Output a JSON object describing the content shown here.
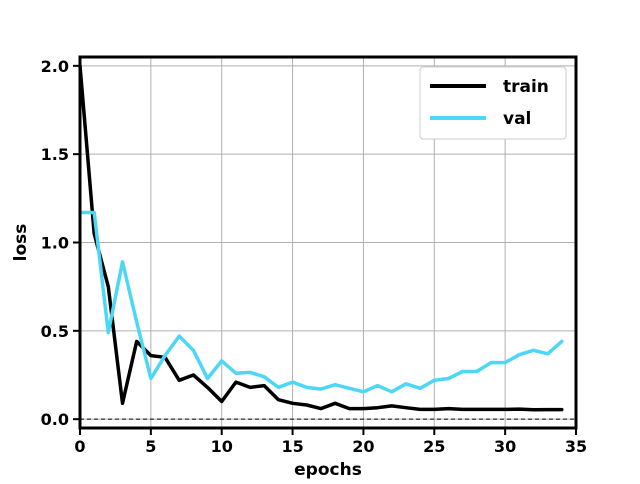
{
  "chart_data": {
    "type": "line",
    "title": "",
    "xlabel": "epochs",
    "ylabel": "loss",
    "xlim": [
      0,
      35
    ],
    "ylim": [
      -0.05,
      2.05
    ],
    "xticks": [
      0,
      5,
      10,
      15,
      20,
      25,
      30,
      35
    ],
    "yticks": [
      0.0,
      0.5,
      1.0,
      1.5,
      2.0
    ],
    "xtick_labels": [
      "0",
      "5",
      "10",
      "15",
      "20",
      "25",
      "30",
      "35"
    ],
    "ytick_labels": [
      "0.0",
      "0.5",
      "1.0",
      "1.5",
      "2.0"
    ],
    "grid": true,
    "legend_position": "top-right",
    "reference_line": {
      "y": 0.0,
      "style": "dashed",
      "color": "#000000"
    },
    "x": [
      0,
      1,
      2,
      3,
      4,
      5,
      6,
      7,
      8,
      9,
      10,
      11,
      12,
      13,
      14,
      15,
      16,
      17,
      18,
      19,
      20,
      21,
      22,
      23,
      24,
      25,
      26,
      27,
      28,
      29,
      30,
      31,
      32,
      33,
      34
    ],
    "series": [
      {
        "name": "train",
        "color": "#000000",
        "values": [
          2.0,
          1.05,
          0.75,
          0.09,
          0.44,
          0.36,
          0.35,
          0.22,
          0.25,
          0.18,
          0.1,
          0.21,
          0.18,
          0.19,
          0.11,
          0.09,
          0.08,
          0.06,
          0.09,
          0.06,
          0.06,
          0.065,
          0.075,
          0.065,
          0.055,
          0.055,
          0.06,
          0.055,
          0.055,
          0.055,
          0.055,
          0.057,
          0.053,
          0.054,
          0.054
        ]
      },
      {
        "name": "val",
        "color": "#4dd7f7",
        "values": [
          1.17,
          1.17,
          0.49,
          0.89,
          0.55,
          0.23,
          0.36,
          0.47,
          0.39,
          0.23,
          0.33,
          0.26,
          0.265,
          0.24,
          0.18,
          0.21,
          0.18,
          0.17,
          0.195,
          0.175,
          0.155,
          0.19,
          0.155,
          0.2,
          0.175,
          0.22,
          0.23,
          0.27,
          0.27,
          0.32,
          0.32,
          0.365,
          0.39,
          0.37,
          0.44
        ]
      }
    ]
  }
}
